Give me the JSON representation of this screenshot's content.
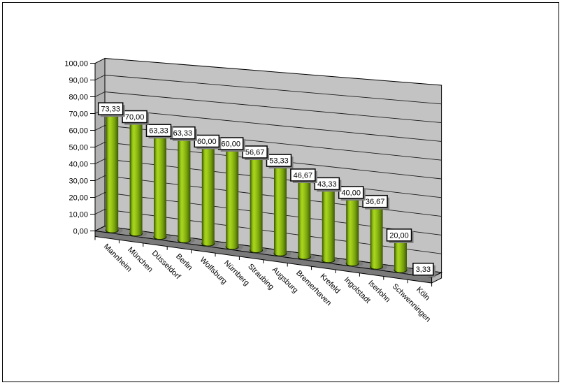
{
  "frame": {
    "background": "#ffffff",
    "border_color": "#000000"
  },
  "chart_data": {
    "type": "bar",
    "subtype": "3d-cylinder",
    "title": "",
    "xlabel": "",
    "ylabel": "",
    "legend": false,
    "grid": true,
    "ylim": [
      0,
      100
    ],
    "y_step": 10,
    "y_tick_labels": [
      "0,00",
      "10,00",
      "20,00",
      "30,00",
      "40,00",
      "50,00",
      "60,00",
      "70,00",
      "80,00",
      "90,00",
      "100,00"
    ],
    "categories": [
      "Mannheim",
      "München",
      "Düsseldorf",
      "Berlin",
      "Wolfsburg",
      "Nürnberg",
      "Straubing",
      "Augsburg",
      "Bremerhaven",
      "Krefeld",
      "Ingolstadt",
      "Iserlohn",
      "Schwenningen",
      "Köln"
    ],
    "values": [
      73.33,
      70.0,
      63.33,
      63.33,
      60.0,
      60.0,
      56.67,
      53.33,
      46.67,
      43.33,
      40.0,
      36.67,
      20.0,
      3.33
    ],
    "data_labels": [
      "73,33",
      "70,00",
      "63,33",
      "63,33",
      "60,00",
      "60,00",
      "56,67",
      "53,33",
      "46,67",
      "43,33",
      "40,00",
      "36,67",
      "20,00",
      "3,33"
    ],
    "colors": {
      "bar_highlight": "#abd61e",
      "bar_mid": "#95c215",
      "bar_dark": "#4e6c08",
      "bar_edge": "#3c5600",
      "bar_top": "#8ab818",
      "wall": "#c3c3c3",
      "side_wall": "#b2b2b2",
      "floor_top": "#8c8c8c",
      "floor_front": "#7a7a7a",
      "floor_side": "#b6b6b6",
      "gridline": "#1c1c1c",
      "axis": "#000000",
      "text": "#000000",
      "label_box_bg": "#ffffff",
      "label_box_border": "#000000",
      "label_box_shadow": "#7f7f7f"
    }
  }
}
